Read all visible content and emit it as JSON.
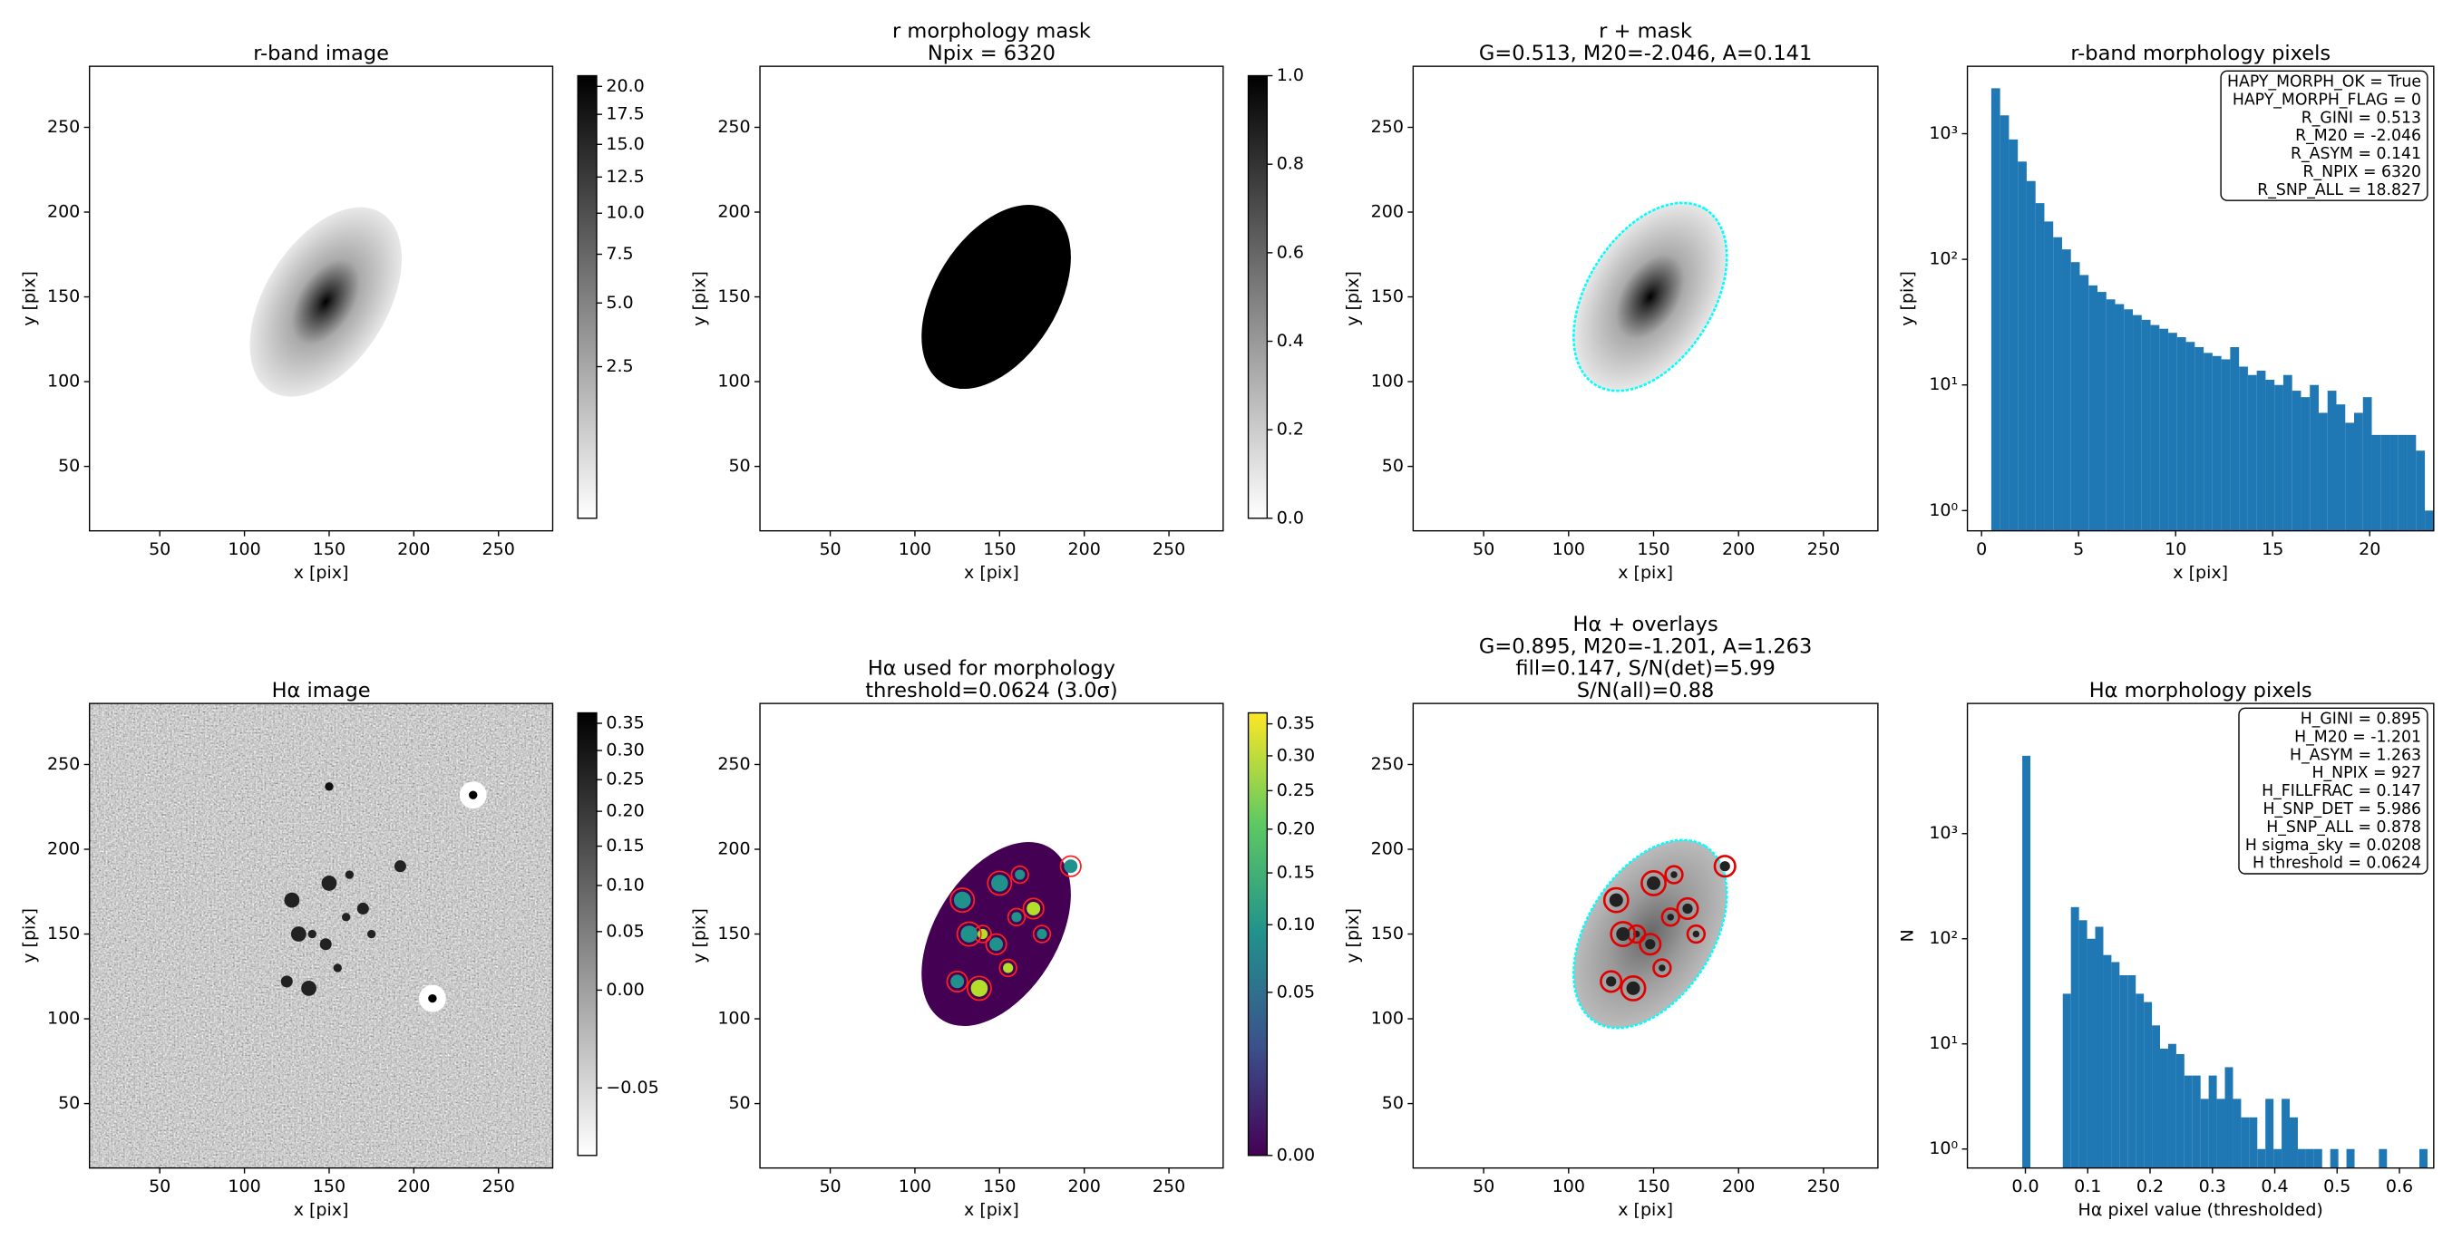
{
  "chart_data": [
    {
      "type": "image",
      "title": [
        "r-band image"
      ],
      "xlabel": "x [pix]",
      "ylabel": "y [pix]",
      "xlim": [
        8.5,
        282
      ],
      "ylim": [
        12,
        286
      ],
      "xticks": [
        50,
        100,
        150,
        200,
        250
      ],
      "yticks": [
        50,
        100,
        150,
        200,
        250
      ],
      "cmap": "gray_r",
      "colorbar": {
        "clim": [
          0.04,
          21
        ],
        "stretch": "sqrt",
        "ticks": [
          {
            "value": 2.5,
            "label": "2.5"
          },
          {
            "value": 5,
            "label": "5.0"
          },
          {
            "value": 7.5,
            "label": "7.5"
          },
          {
            "value": 10,
            "label": "10.0"
          },
          {
            "value": 12.5,
            "label": "12.5"
          },
          {
            "value": 15,
            "label": "15.0"
          },
          {
            "value": 17.5,
            "label": "17.5"
          },
          {
            "value": 20,
            "label": "20.0"
          }
        ]
      }
    },
    {
      "type": "image",
      "title": [
        "r morphology mask",
        "Npix = 6320"
      ],
      "xlabel": "x [pix]",
      "ylabel": "y [pix]",
      "xlim": [
        8.5,
        282
      ],
      "ylim": [
        12,
        286
      ],
      "xticks": [
        50,
        100,
        150,
        200,
        250
      ],
      "yticks": [
        50,
        100,
        150,
        200,
        250
      ],
      "cmap": "gray_r",
      "colorbar": {
        "clim": [
          0,
          1
        ],
        "stretch": "linear",
        "ticks": [
          {
            "value": 0,
            "label": "0.0"
          },
          {
            "value": 0.2,
            "label": "0.2"
          },
          {
            "value": 0.4,
            "label": "0.4"
          },
          {
            "value": 0.6,
            "label": "0.6"
          },
          {
            "value": 0.8,
            "label": "0.8"
          },
          {
            "value": 1,
            "label": "1.0"
          }
        ]
      }
    },
    {
      "type": "image",
      "title": [
        "r + mask",
        "G=0.513, M20=-2.046, A=0.141"
      ],
      "xlabel": "x [pix]",
      "ylabel": "y [pix]",
      "xlim": [
        8.5,
        282
      ],
      "ylim": [
        12,
        286
      ],
      "xticks": [
        50,
        100,
        150,
        200,
        250
      ],
      "yticks": [
        50,
        100,
        150,
        200,
        250
      ],
      "cmap": "gray_r"
    },
    {
      "type": "histogram",
      "title": [
        "r-band morphology pixels"
      ],
      "xlabel": "x [pix]",
      "ylabel": "y [pix]",
      "color": "#1f77b4",
      "log_y": true,
      "xlim": [
        -0.73,
        23.3
      ],
      "ylim": [
        0.69,
        3440
      ],
      "xticks": [
        0,
        5,
        10,
        15,
        20
      ],
      "yticks": [
        {
          "value": 1,
          "label": "10⁰"
        },
        {
          "value": 10,
          "label": "10¹"
        },
        {
          "value": 100,
          "label": "10²"
        },
        {
          "value": 1000,
          "label": "10³"
        }
      ],
      "annotation": [
        "HAPY_MORPH_OK = True",
        "HAPY_MORPH_FLAG = 0",
        "R_GINI = 0.513",
        "R_M20 = -2.046",
        "R_ASYM = 0.141",
        "R_NPIX = 6320",
        "R_SNP_ALL = 18.827"
      ],
      "bins": [
        0.5,
        0.956,
        1.412,
        1.868,
        2.324,
        2.78,
        3.236,
        3.692,
        4.148,
        4.604,
        5.06,
        5.516,
        5.972,
        6.428,
        6.884,
        7.34,
        7.796,
        8.252,
        8.708,
        9.164,
        9.62,
        10.076,
        10.532,
        10.988,
        11.444,
        11.9,
        12.356,
        12.812,
        13.268,
        13.724,
        14.18,
        14.636,
        15.092,
        15.548,
        16.004,
        16.46,
        16.916,
        17.372,
        17.828,
        18.284,
        18.74,
        19.196,
        19.652,
        20.108,
        20.564,
        21.02,
        21.476,
        21.932,
        22.388,
        22.844,
        23.3
      ],
      "values": [
        2300,
        1400,
        900,
        600,
        420,
        280,
        200,
        150,
        120,
        95,
        75,
        62,
        55,
        48,
        44,
        40,
        36,
        33,
        30,
        28,
        26,
        24,
        22,
        20,
        18,
        17,
        16,
        20,
        14,
        12,
        13,
        11,
        10,
        12,
        9,
        8,
        10,
        6,
        9,
        7,
        5,
        6,
        8,
        4,
        4,
        4,
        4,
        4,
        3,
        1
      ]
    },
    {
      "type": "image",
      "title": [
        "Hα image"
      ],
      "xlabel": "x [pix]",
      "ylabel": "y [pix]",
      "xlim": [
        8.5,
        282
      ],
      "ylim": [
        12,
        286
      ],
      "xticks": [
        50,
        100,
        150,
        200,
        250
      ],
      "yticks": [
        50,
        100,
        150,
        200,
        250
      ],
      "cmap": "gray_r",
      "colorbar": {
        "clim": [
          -0.06,
          0.37
        ],
        "stretch": "sqrt",
        "ticks": [
          {
            "value": -0.05,
            "label": "−0.05"
          },
          {
            "value": 0,
            "label": "0.00"
          },
          {
            "value": 0.05,
            "label": "0.05"
          },
          {
            "value": 0.1,
            "label": "0.10"
          },
          {
            "value": 0.15,
            "label": "0.15"
          },
          {
            "value": 0.2,
            "label": "0.20"
          },
          {
            "value": 0.25,
            "label": "0.25"
          },
          {
            "value": 0.3,
            "label": "0.30"
          },
          {
            "value": 0.35,
            "label": "0.35"
          }
        ]
      }
    },
    {
      "type": "image",
      "title": [
        "Hα used for morphology",
        "threshold=0.0624 (3.0σ)"
      ],
      "xlabel": "x [pix]",
      "ylabel": "y [pix]",
      "xlim": [
        8.5,
        282
      ],
      "ylim": [
        12,
        286
      ],
      "xticks": [
        50,
        100,
        150,
        200,
        250
      ],
      "yticks": [
        50,
        100,
        150,
        200,
        250
      ],
      "cmap": "viridis",
      "colorbar": {
        "clim": [
          0,
          0.368
        ],
        "stretch": "sqrt",
        "ticks": [
          {
            "value": 0,
            "label": "0.00"
          },
          {
            "value": 0.05,
            "label": "0.05"
          },
          {
            "value": 0.1,
            "label": "0.10"
          },
          {
            "value": 0.15,
            "label": "0.15"
          },
          {
            "value": 0.2,
            "label": "0.20"
          },
          {
            "value": 0.25,
            "label": "0.25"
          },
          {
            "value": 0.3,
            "label": "0.30"
          },
          {
            "value": 0.35,
            "label": "0.35"
          }
        ]
      }
    },
    {
      "type": "image",
      "title": [
        "Hα + overlays",
        "G=0.895, M20=-1.201, A=1.263",
        "fill=0.147, S/N(det)=5.99",
        "S/N(all)=0.88"
      ],
      "xlabel": "x [pix]",
      "ylabel": "y [pix]",
      "xlim": [
        8.5,
        282
      ],
      "ylim": [
        12,
        286
      ],
      "xticks": [
        50,
        100,
        150,
        200,
        250
      ],
      "yticks": [
        50,
        100,
        150,
        200,
        250
      ],
      "cmap": "gray_r"
    },
    {
      "type": "histogram",
      "title": [
        "Hα morphology pixels"
      ],
      "xlabel": "Hα pixel value (thresholded)",
      "ylabel": "N",
      "color": "#1f77b4",
      "log_y": true,
      "xlim": [
        -0.093,
        0.655
      ],
      "ylim": [
        0.66,
        17300
      ],
      "xticks": [
        {
          "value": 0,
          "label": "0.0"
        },
        {
          "value": 0.1,
          "label": "0.1"
        },
        {
          "value": 0.2,
          "label": "0.2"
        },
        {
          "value": 0.3,
          "label": "0.3"
        },
        {
          "value": 0.4,
          "label": "0.4"
        },
        {
          "value": 0.5,
          "label": "0.5"
        },
        {
          "value": 0.6,
          "label": "0.6"
        }
      ],
      "yticks": [
        {
          "value": 1,
          "label": "10⁰"
        },
        {
          "value": 10,
          "label": "10¹"
        },
        {
          "value": 100,
          "label": "10²"
        },
        {
          "value": 1000,
          "label": "10³"
        }
      ],
      "annotation": [
        "H_GINI = 0.895",
        "H_M20 = -1.201",
        "H_ASYM = 1.263",
        "H_NPIX = 927",
        "H_FILLFRAC = 0.147",
        "H_SNP_DET = 5.986",
        "H_SNP_ALL = 0.878",
        "H sigma_sky = 0.0208",
        "H threshold = 0.0624"
      ],
      "bins": [
        -0.005,
        0.008,
        0.021,
        0.034,
        0.047,
        0.06,
        0.073,
        0.086,
        0.099,
        0.112,
        0.125,
        0.138,
        0.151,
        0.164,
        0.177,
        0.19,
        0.203,
        0.216,
        0.229,
        0.242,
        0.255,
        0.268,
        0.281,
        0.294,
        0.307,
        0.32,
        0.333,
        0.346,
        0.359,
        0.372,
        0.385,
        0.398,
        0.411,
        0.424,
        0.437,
        0.45,
        0.463,
        0.476,
        0.489,
        0.502,
        0.515,
        0.528,
        0.541,
        0.554,
        0.567,
        0.58,
        0.593,
        0.606,
        0.619,
        0.632,
        0.645
      ],
      "values": [
        5500,
        0,
        0,
        0,
        0,
        30,
        200,
        150,
        100,
        130,
        70,
        60,
        45,
        45,
        30,
        25,
        15,
        9,
        10,
        8,
        5,
        5,
        3,
        5,
        3,
        6,
        3,
        2,
        2,
        1,
        3,
        1,
        3,
        2,
        1,
        1,
        1,
        0,
        1,
        0,
        1,
        0,
        0,
        0,
        1,
        0,
        0,
        0,
        0,
        1
      ]
    }
  ]
}
